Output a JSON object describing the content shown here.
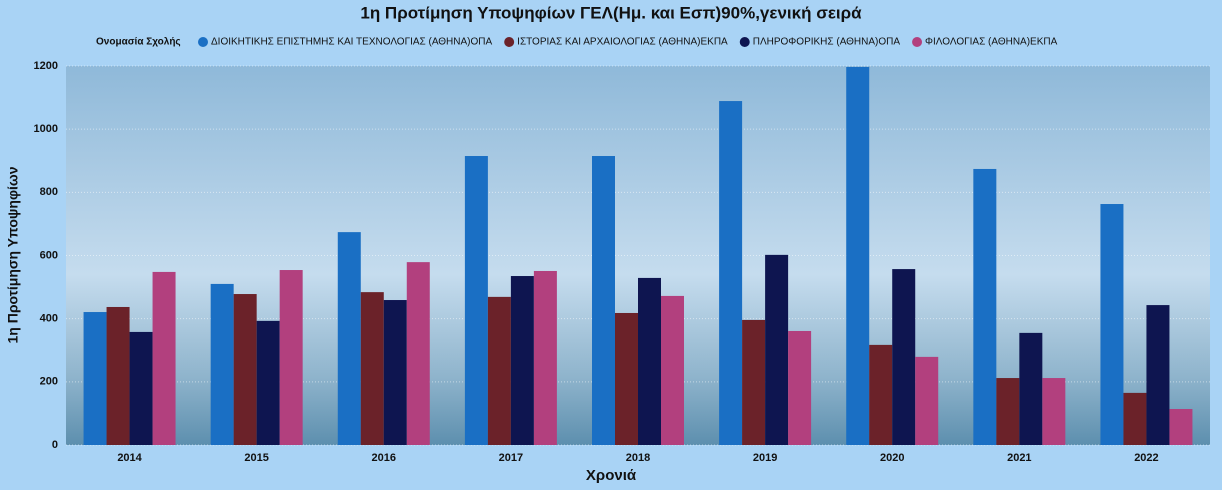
{
  "chart_data": {
    "type": "bar",
    "title": "1η Προτίμηση Υποψηφίων ΓΕΛ(Ημ. και Εσπ)90%,γενική σειρά",
    "legend_title": "Ονομασία Σχολής",
    "x_label": "Χρονιά",
    "y_label": "1η Προτίμηση Υποψηφίων",
    "categories": [
      "2014",
      "2015",
      "2016",
      "2017",
      "2018",
      "2019",
      "2020",
      "2021",
      "2022"
    ],
    "series": [
      {
        "name": "ΔΙΟΙΚΗΤΙΚΗΣ ΕΠΙΣΤΗΜΗΣ ΚΑΙ ΤΕΧΝΟΛΟΓΙΑΣ (ΑΘΗΝΑ)ΟΠΑ",
        "color": "#1a6fc4",
        "values": [
          421,
          510,
          674,
          915,
          915,
          1089,
          1197,
          874,
          763
        ]
      },
      {
        "name": "ΙΣΤΟΡΙΑΣ ΚΑΙ ΑΡΧΑΙΟΛΟΓΙΑΣ (ΑΘΗΝΑ)ΕΚΠΑ",
        "color": "#6b2229",
        "values": [
          437,
          478,
          484,
          469,
          418,
          396,
          317,
          212,
          165
        ]
      },
      {
        "name": "ΠΛΗΡΟΦΟΡΙΚΗΣ (ΑΘΗΝΑ)ΟΠΑ",
        "color": "#0e1550",
        "values": [
          358,
          393,
          459,
          535,
          529,
          602,
          557,
          355,
          443
        ]
      },
      {
        "name": "ΦΙΛΟΛΟΓΙΑΣ (ΑΘΗΝΑ)ΕΚΠΑ",
        "color": "#b2407e",
        "values": [
          548,
          554,
          579,
          551,
          472,
          361,
          279,
          212,
          114
        ]
      }
    ],
    "ylim": [
      0,
      1200
    ],
    "yticks": [
      0,
      200,
      400,
      600,
      800,
      1000,
      1200
    ],
    "grid": true
  }
}
